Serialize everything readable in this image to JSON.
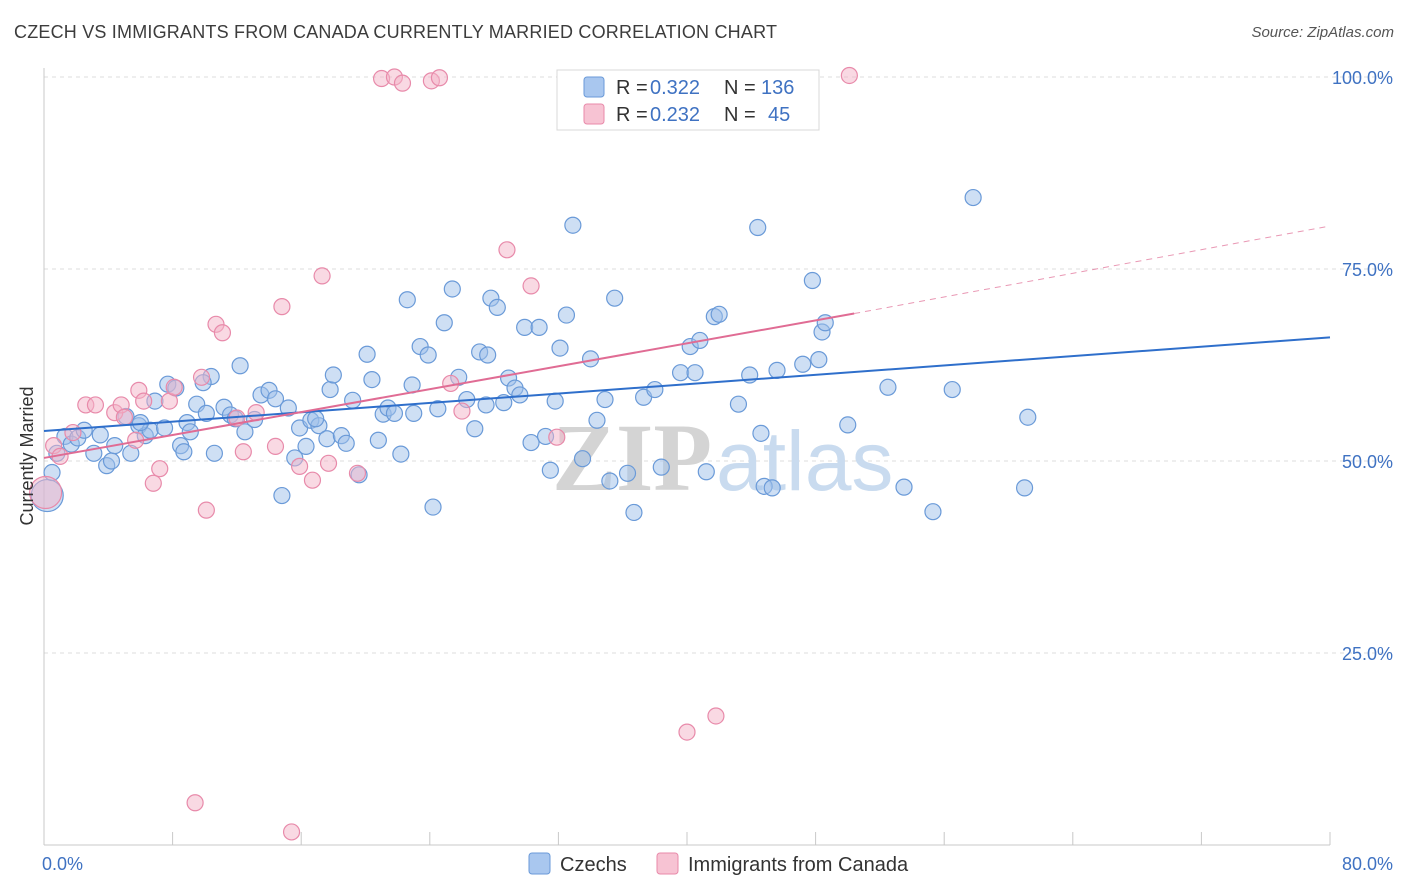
{
  "title": "CZECH VS IMMIGRANTS FROM CANADA CURRENTLY MARRIED CORRELATION CHART",
  "source": "Source: ZipAtlas.com",
  "watermark": {
    "zip": "ZIP",
    "atlas": "atlas"
  },
  "colors": {
    "czech_fill": "#9dbfea",
    "czech_stroke": "#6a9ad8",
    "czech_line": "#2f6fcb",
    "canada_fill": "#f4b3c8",
    "canada_stroke": "#e88aaa",
    "canada_line": "#e06c94",
    "grid": "#dcdcdc",
    "tick_label": "#3f72c2"
  },
  "legend": {
    "rows": [
      {
        "r_label": "R =",
        "r_value": "0.322",
        "n_label": "N =",
        "n_value": "136"
      },
      {
        "r_label": "R =",
        "r_value": "0.232",
        "n_label": "N =",
        "n_value": "45"
      }
    ]
  },
  "bottom_legend": [
    "Czechs",
    "Immigrants from Canada"
  ],
  "chart_data": {
    "type": "scatter",
    "title": "CZECH VS IMMIGRANTS FROM CANADA CURRENTLY MARRIED CORRELATION CHART",
    "xlabel": "",
    "ylabel": "Currently Married",
    "xlim": [
      0,
      80
    ],
    "ylim": [
      0,
      105
    ],
    "x_tick_labels": [
      "0.0%",
      "80.0%"
    ],
    "y_ticks": [
      25,
      50,
      75,
      100
    ],
    "y_tick_labels": [
      "25.0%",
      "50.0%",
      "75.0%",
      "100.0%"
    ],
    "grid": true,
    "legend_placement": "top-center",
    "series": [
      {
        "name": "Czechs",
        "R": 0.322,
        "N": 136,
        "trend": {
          "x": [
            0,
            80
          ],
          "y": [
            53.9,
            66.1
          ]
        },
        "points": [
          [
            0.2,
            45.5
          ],
          [
            0.5,
            48.5
          ],
          [
            0.8,
            51
          ],
          [
            1.3,
            53.2
          ],
          [
            1.7,
            52.2
          ],
          [
            2.1,
            53
          ],
          [
            2.5,
            54
          ],
          [
            3.1,
            51
          ],
          [
            3.5,
            53.4
          ],
          [
            3.9,
            49.4
          ],
          [
            4.2,
            50
          ],
          [
            4.4,
            52
          ],
          [
            5.1,
            55.8
          ],
          [
            5.4,
            51
          ],
          [
            5.9,
            54.6
          ],
          [
            6.3,
            53.3
          ],
          [
            6.6,
            54
          ],
          [
            6.9,
            57.8
          ],
          [
            7.5,
            54.3
          ],
          [
            7.7,
            60
          ],
          [
            8.2,
            59.5
          ],
          [
            8.5,
            52
          ],
          [
            8.7,
            51.2
          ],
          [
            8.9,
            55
          ],
          [
            9.1,
            53.8
          ],
          [
            9.5,
            57.4
          ],
          [
            10.1,
            56.2
          ],
          [
            10.4,
            61
          ],
          [
            10.6,
            51
          ],
          [
            11.2,
            57
          ],
          [
            11.6,
            56
          ],
          [
            11.9,
            55.5
          ],
          [
            12.2,
            62.4
          ],
          [
            12.5,
            53.8
          ],
          [
            13.1,
            55.4
          ],
          [
            13.5,
            58.6
          ],
          [
            14.0,
            59.2
          ],
          [
            14.4,
            58.1
          ],
          [
            14.8,
            45.5
          ],
          [
            15.2,
            56.9
          ],
          [
            15.6,
            50.4
          ],
          [
            15.9,
            54.3
          ],
          [
            16.3,
            51.9
          ],
          [
            16.6,
            55.3
          ],
          [
            17.1,
            54.6
          ],
          [
            17.6,
            52.9
          ],
          [
            17.8,
            59.3
          ],
          [
            18.0,
            61.2
          ],
          [
            18.5,
            53.3
          ],
          [
            18.8,
            52.3
          ],
          [
            19.2,
            57.9
          ],
          [
            19.6,
            48.2
          ],
          [
            20.1,
            63.9
          ],
          [
            20.4,
            60.6
          ],
          [
            20.8,
            52.7
          ],
          [
            21.1,
            56.1
          ],
          [
            21.4,
            56.9
          ],
          [
            21.8,
            56.2
          ],
          [
            22.2,
            50.9
          ],
          [
            22.6,
            71
          ],
          [
            23.0,
            56.2
          ],
          [
            23.4,
            64.9
          ],
          [
            23.9,
            63.8
          ],
          [
            24.2,
            44
          ],
          [
            24.5,
            56.8
          ],
          [
            24.9,
            68
          ],
          [
            25.4,
            72.4
          ],
          [
            25.8,
            60.9
          ],
          [
            26.3,
            58
          ],
          [
            26.8,
            54.2
          ],
          [
            27.1,
            64.2
          ],
          [
            27.5,
            57.3
          ],
          [
            27.8,
            71.2
          ],
          [
            28.2,
            70
          ],
          [
            28.6,
            57.6
          ],
          [
            28.9,
            60.8
          ],
          [
            29.3,
            59.5
          ],
          [
            29.6,
            58.6
          ],
          [
            29.9,
            67.4
          ],
          [
            30.3,
            52.4
          ],
          [
            30.8,
            67.4
          ],
          [
            31.2,
            53.2
          ],
          [
            31.5,
            48.8
          ],
          [
            31.8,
            57.8
          ],
          [
            32.1,
            64.7
          ],
          [
            32.5,
            69
          ],
          [
            32.9,
            80.7
          ],
          [
            33.5,
            50.3
          ],
          [
            34.0,
            63.3
          ],
          [
            34.4,
            55.3
          ],
          [
            34.9,
            58
          ],
          [
            35.2,
            47.4
          ],
          [
            35.5,
            71.2
          ],
          [
            36.3,
            48.4
          ],
          [
            36.7,
            43.3
          ],
          [
            37.3,
            58.3
          ],
          [
            38.0,
            59.3
          ],
          [
            38.4,
            49.2
          ],
          [
            39.6,
            61.5
          ],
          [
            40.2,
            64.9
          ],
          [
            40.5,
            61.5
          ],
          [
            40.8,
            65.7
          ],
          [
            41.2,
            48.6
          ],
          [
            41.7,
            68.8
          ],
          [
            42.0,
            69.1
          ],
          [
            43.2,
            57.4
          ],
          [
            43.9,
            61.2
          ],
          [
            44.4,
            80.4
          ],
          [
            44.6,
            53.6
          ],
          [
            44.8,
            46.7
          ],
          [
            45.3,
            46.5
          ],
          [
            45.6,
            61.8
          ],
          [
            47.2,
            62.6
          ],
          [
            47.8,
            73.5
          ],
          [
            48.2,
            63.2
          ],
          [
            48.4,
            66.8
          ],
          [
            48.6,
            68
          ],
          [
            50.0,
            54.7
          ],
          [
            52.5,
            59.6
          ],
          [
            53.5,
            46.6
          ],
          [
            55.3,
            43.4
          ],
          [
            56.5,
            59.3
          ],
          [
            57.8,
            84.3
          ],
          [
            61.0,
            46.5
          ],
          [
            61.2,
            55.7
          ],
          [
            6.0,
            55
          ],
          [
            9.9,
            60.2
          ],
          [
            16.9,
            55.5
          ],
          [
            22.9,
            59.9
          ],
          [
            27.6,
            63.8
          ]
        ]
      },
      {
        "name": "Immigrants from Canada",
        "R": 0.232,
        "N": 45,
        "trend": {
          "x": [
            0,
            50.4
          ],
          "y": [
            50.4,
            69.2
          ]
        },
        "trend_dashed": {
          "x": [
            50.4,
            80
          ],
          "y": [
            69.2,
            80.6
          ]
        },
        "points": [
          [
            0.1,
            45.9
          ],
          [
            0.6,
            52
          ],
          [
            1.0,
            50.6
          ],
          [
            1.8,
            53.7
          ],
          [
            2.6,
            57.3
          ],
          [
            3.2,
            57.3
          ],
          [
            4.4,
            56.3
          ],
          [
            4.8,
            57.3
          ],
          [
            5.0,
            55.7
          ],
          [
            5.7,
            52.7
          ],
          [
            5.9,
            59.2
          ],
          [
            6.2,
            57.8
          ],
          [
            6.8,
            47.1
          ],
          [
            7.2,
            49
          ],
          [
            7.8,
            57.8
          ],
          [
            8.1,
            59.6
          ],
          [
            9.4,
            5.5
          ],
          [
            9.8,
            60.9
          ],
          [
            10.1,
            43.6
          ],
          [
            10.7,
            67.8
          ],
          [
            11.1,
            66.7
          ],
          [
            12.0,
            55.6
          ],
          [
            12.4,
            51.2
          ],
          [
            13.2,
            56.3
          ],
          [
            14.4,
            51.9
          ],
          [
            14.8,
            70.1
          ],
          [
            15.4,
            1.7
          ],
          [
            15.9,
            49.3
          ],
          [
            16.7,
            47.5
          ],
          [
            17.3,
            74.1
          ],
          [
            17.7,
            49.7
          ],
          [
            19.5,
            48.4
          ],
          [
            21.0,
            99.8
          ],
          [
            21.8,
            100
          ],
          [
            22.3,
            99.2
          ],
          [
            24.1,
            99.5
          ],
          [
            24.6,
            99.9
          ],
          [
            25.3,
            60.1
          ],
          [
            26.0,
            56.5
          ],
          [
            28.8,
            77.5
          ],
          [
            30.3,
            72.8
          ],
          [
            31.9,
            53.1
          ],
          [
            40.0,
            14.7
          ],
          [
            41.8,
            16.8
          ],
          [
            50.1,
            100.2
          ]
        ]
      }
    ]
  }
}
